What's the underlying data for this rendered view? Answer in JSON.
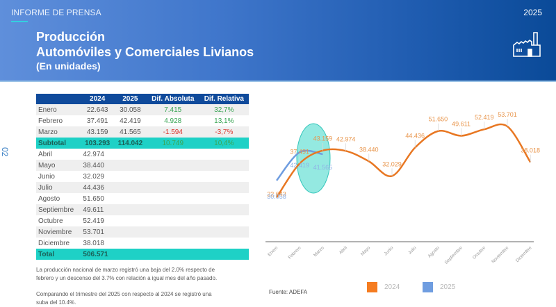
{
  "header": {
    "kicker": "INFORME DE PRENSA",
    "year": "2025",
    "title_line1": "Producción",
    "title_line2": "Automóviles y Comerciales Livianos",
    "title_line3": "(En unidades)",
    "icon": "factory-icon"
  },
  "page_number": "02",
  "table": {
    "headers": [
      "",
      "2024",
      "2025",
      "Dif. Absoluta",
      "Dif. Relativa"
    ],
    "rows": [
      {
        "month": "Enero",
        "y2024": "22.643",
        "y2025": "30.058",
        "abs": "7.415",
        "rel": "32,7%"
      },
      {
        "month": "Febrero",
        "y2024": "37.491",
        "y2025": "42.419",
        "abs": "4.928",
        "rel": "13,1%"
      },
      {
        "month": "Marzo",
        "y2024": "43.159",
        "y2025": "41.565",
        "abs": "-1.594",
        "rel": "-3,7%"
      }
    ],
    "subtotal": {
      "label": "Subtotal",
      "y2024": "103.293",
      "y2025": "114.042",
      "abs": "10.749",
      "rel": "10,4%"
    },
    "rest": [
      {
        "month": "Abril",
        "y2024": "42.974"
      },
      {
        "month": "Mayo",
        "y2024": "38.440"
      },
      {
        "month": "Junio",
        "y2024": "32.029"
      },
      {
        "month": "Julio",
        "y2024": "44.436"
      },
      {
        "month": "Agosto",
        "y2024": "51.650"
      },
      {
        "month": "Septiembre",
        "y2024": "49.611"
      },
      {
        "month": "Octubre",
        "y2024": "52.419"
      },
      {
        "month": "Noviembre",
        "y2024": "53.701"
      },
      {
        "month": "Diciembre",
        "y2024": "38.018"
      }
    ],
    "total": {
      "label": "Total",
      "y2024": "506.571"
    }
  },
  "notes": [
    "La producción nacional de marzo registró una baja del 2.0% respecto de febrero y un descenso del 3.7% con relación a igual mes del año pasado.",
    "Comparando el trimestre del 2025 con respecto al 2024 se registró una suba del 10.4%."
  ],
  "source": "Fuente: ADEFA",
  "legend": [
    {
      "label": "2024",
      "color": "#f07a1a"
    },
    {
      "label": "2025",
      "color": "#6f9de0"
    }
  ],
  "chart_data": {
    "type": "line",
    "title": "",
    "xlabel": "",
    "ylabel": "",
    "categories": [
      "Enero",
      "Febrero",
      "Marzo",
      "Abril",
      "Mayo",
      "Junio",
      "Julio",
      "Agosto",
      "Septiembre",
      "Octubre",
      "Noviembre",
      "Diciembre"
    ],
    "series": [
      {
        "name": "2024",
        "color": "#e87722",
        "values": [
          22643,
          37491,
          43159,
          42974,
          38440,
          32029,
          44436,
          51650,
          49611,
          52419,
          53701,
          38018
        ],
        "labels": [
          "22.643",
          "37.491",
          "43.159",
          "42.974",
          "38.440",
          "32.029",
          "44.436",
          "51.650",
          "49.611",
          "52.419",
          "53.701",
          "38.018"
        ]
      },
      {
        "name": "2025",
        "color": "#6f9de0",
        "values": [
          30058,
          42419,
          41565
        ],
        "labels": [
          "30.058",
          "42.419",
          "41.565"
        ]
      }
    ],
    "annotations": [
      "Highlight ellipse around Marzo"
    ],
    "grid": false,
    "legend_position": "bottom"
  }
}
